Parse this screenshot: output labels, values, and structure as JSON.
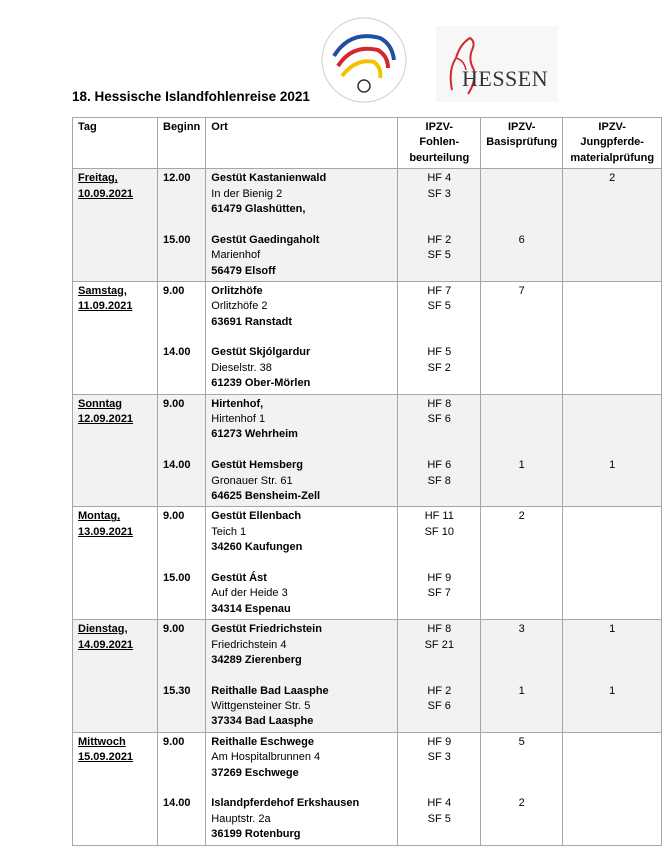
{
  "header": {
    "title": "18. Hessische Islandfohlenreise 2021",
    "logo_text": "HESSEN"
  },
  "table": {
    "headers": [
      [
        "Tag"
      ],
      [
        "Beginn"
      ],
      [
        "Ort"
      ],
      [
        "IPZV-",
        "Fohlen-",
        "beurteilung"
      ],
      [
        "IPZV-",
        "Basisprüfung"
      ],
      [
        "IPZV-",
        "Jungpferde-",
        "materialprüfung"
      ]
    ],
    "days": [
      {
        "day": "Freitag,",
        "date": "10.09.2021",
        "visits": [
          {
            "time": "12.00",
            "place": [
              "Gestüt Kastanienwald",
              "In der Bienig 2",
              "61479 Glashütten,"
            ],
            "foals": [
              "HF 4",
              "SF 3"
            ],
            "jung": 2
          },
          {
            "time": "15.00",
            "place": [
              "Gestüt Gaedingaholt",
              "Marienhof",
              "56479 Elsoff"
            ],
            "foals": [
              "HF 2",
              "SF 5"
            ],
            "basis": 6
          }
        ]
      },
      {
        "day": "Samstag,",
        "date": "11.09.2021",
        "visits": [
          {
            "time": "9.00",
            "place": [
              "Orlitzhöfe",
              "Orlitzhöfe 2",
              "63691 Ranstadt"
            ],
            "foals": [
              "HF 7",
              "SF 5"
            ],
            "basis": 7
          },
          {
            "time": "14.00",
            "place": [
              "Gestüt Skjólgardur",
              "Dieselstr. 38",
              "61239 Ober-Mörlen"
            ],
            "foals": [
              "HF 5",
              "SF 2"
            ]
          }
        ]
      },
      {
        "day": "Sonntag",
        "date": "12.09.2021",
        "visits": [
          {
            "time": "9.00",
            "place": [
              "Hirtenhof,",
              "Hirtenhof 1",
              "61273 Wehrheim"
            ],
            "foals": [
              "HF 8",
              "SF 6"
            ]
          },
          {
            "time": "14.00",
            "place": [
              "Gestüt Hemsberg",
              "Gronauer Str. 61",
              "64625 Bensheim-Zell"
            ],
            "foals": [
              "HF 6",
              "SF 8"
            ],
            "basis": 1,
            "jung": 1
          }
        ]
      },
      {
        "day": "Montag,",
        "date": "13.09.2021",
        "visits": [
          {
            "time": "9.00",
            "place": [
              "Gestüt Ellenbach",
              "Teich 1",
              "34260 Kaufungen"
            ],
            "foals": [
              "HF 11",
              "SF 10"
            ],
            "basis": 2
          },
          {
            "time": "15.00",
            "place": [
              "Gestüt Ást",
              "Auf der Heide 3",
              "34314 Espenau"
            ],
            "foals": [
              "HF 9",
              "SF 7"
            ]
          }
        ]
      },
      {
        "day": "Dienstag,",
        "date": "14.09.2021",
        "visits": [
          {
            "time": "9.00",
            "place": [
              "Gestüt Friedrichstein",
              "Friedrichstein 4",
              "34289 Zierenberg"
            ],
            "foals": [
              "HF 8",
              "SF 21"
            ],
            "basis": 3,
            "jung": 1
          },
          {
            "time": "15.30",
            "place": [
              "Reithalle Bad Laasphe",
              "Wittgensteiner Str. 5",
              "37334 Bad Laasphe"
            ],
            "foals": [
              "HF 2",
              "SF 6"
            ],
            "basis": 1,
            "jung": 1
          }
        ]
      },
      {
        "day": "Mittwoch",
        "date": "15.09.2021",
        "visits": [
          {
            "time": "9.00",
            "place": [
              "Reithalle Eschwege",
              "Am Hospitalbrunnen 4",
              "37269 Eschwege"
            ],
            "foals": [
              "HF 9",
              "SF 3"
            ],
            "basis": 5
          },
          {
            "time": "14.00",
            "place": [
              "Islandpferdehof Erkshausen",
              "Hauptstr. 2a",
              "36199 Rotenburg"
            ],
            "foals": [
              "HF 4",
              "SF 5"
            ],
            "basis": 2
          }
        ]
      }
    ]
  }
}
